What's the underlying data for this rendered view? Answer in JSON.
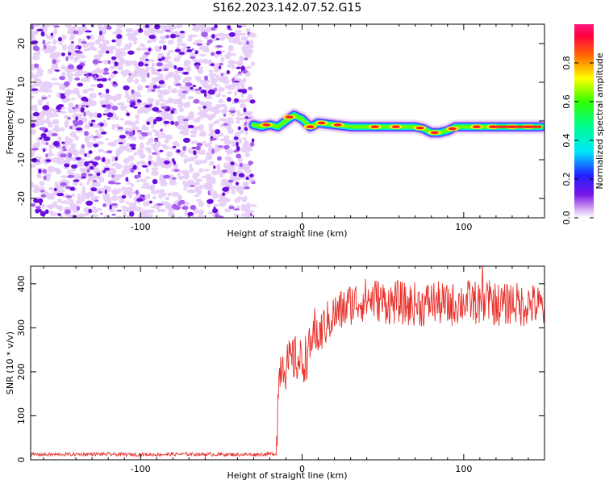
{
  "title": "S162.2023.142.07.52.G15",
  "colors": {
    "snr_line": "#e8302a",
    "noise_speckle_light": "#e6cdf7",
    "noise_speckle_dark": "#6a0fe0"
  },
  "chart_data": [
    {
      "type": "heatmap",
      "name": "spectrogram",
      "xlabel": "Height of straight line (km)",
      "ylabel": "Frequency (Hz)",
      "xlim": [
        -168,
        150
      ],
      "ylim": [
        -25,
        25
      ],
      "xticks": [
        -100,
        0,
        100
      ],
      "yticks": [
        -20,
        -10,
        0,
        10,
        20
      ],
      "xtick_labels": [
        "-100",
        "0",
        "100"
      ],
      "ytick_labels": [
        "-20",
        "-10",
        "0",
        "10",
        "20"
      ],
      "colorbar": {
        "label": "Normalized spectral amplitude",
        "range": [
          0,
          1
        ],
        "ticks": [
          0.0,
          0.2,
          0.4,
          0.6,
          0.8
        ],
        "tick_labels": [
          "0.0",
          "0.2",
          "0.4",
          "0.6",
          "0.8"
        ],
        "colormap": "rainbow (white-purple-blue-cyan-green-yellow-red-magenta)"
      },
      "noise_region_x": [
        -168,
        -30
      ],
      "signal_ridge": {
        "x": [
          -30,
          -25,
          -20,
          -15,
          -10,
          -5,
          0,
          5,
          10,
          20,
          30,
          40,
          50,
          60,
          70,
          75,
          80,
          85,
          90,
          95,
          100,
          110,
          120,
          130,
          140,
          148
        ],
        "frequency": [
          -1,
          -1.5,
          -1,
          -1.5,
          0,
          1.5,
          0.5,
          -1.5,
          -0.5,
          -1,
          -1.5,
          -1.5,
          -1.5,
          -1.5,
          -1.5,
          -2,
          -3,
          -3,
          -2.5,
          -1.5,
          -1.5,
          -1.5,
          -1.5,
          -1.5,
          -1.5,
          -1.5
        ]
      },
      "grid": false
    },
    {
      "type": "line",
      "name": "snr",
      "xlabel": "Height of straight line (km)",
      "ylabel": "SNR (10 * v/v)",
      "xlim": [
        -168,
        150
      ],
      "ylim": [
        0,
        440
      ],
      "xticks": [
        -100,
        0,
        100
      ],
      "yticks": [
        0,
        100,
        200,
        300,
        400
      ],
      "xtick_labels": [
        "-100",
        "0",
        "100"
      ],
      "ytick_labels": [
        "0",
        "100",
        "200",
        "300",
        "400"
      ],
      "grid": false,
      "series": [
        {
          "x": [
            -168,
            -150,
            -130,
            -110,
            -90,
            -70,
            -50,
            -30,
            -20,
            -16,
            -15,
            -14,
            -12,
            -10,
            -5,
            0,
            5,
            8,
            10,
            15,
            20,
            25,
            30,
            35,
            40,
            45,
            50,
            55,
            60,
            65,
            70,
            75,
            80,
            85,
            90,
            95,
            100,
            105,
            110,
            115,
            120,
            125,
            130,
            135,
            140,
            145,
            150
          ],
          "values": [
            12,
            12,
            13,
            12,
            12,
            13,
            12,
            12,
            13,
            14,
            130,
            200,
            230,
            210,
            230,
            220,
            250,
            300,
            280,
            310,
            330,
            340,
            355,
            360,
            365,
            365,
            360,
            355,
            360,
            350,
            355,
            350,
            360,
            355,
            350,
            355,
            360,
            360,
            355,
            360,
            355,
            350,
            360,
            350,
            355,
            350,
            345
          ]
        }
      ]
    }
  ]
}
